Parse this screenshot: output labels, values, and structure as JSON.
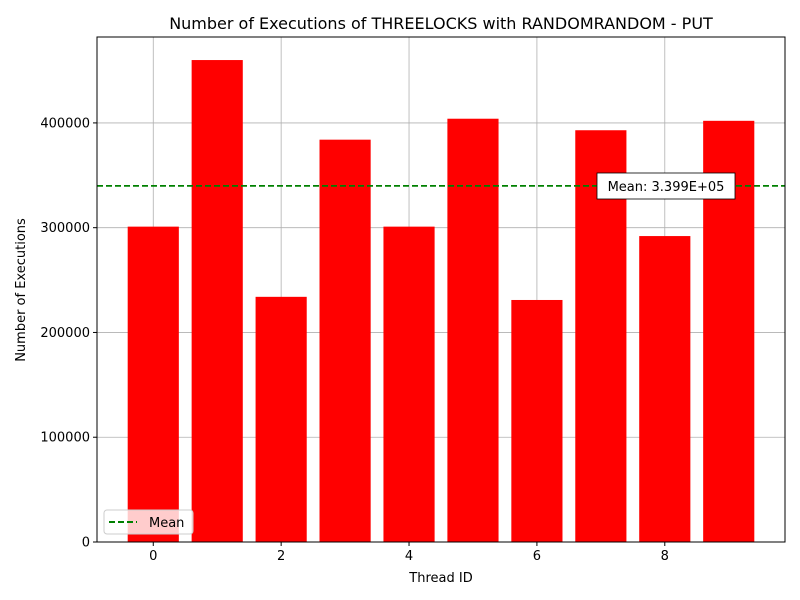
{
  "chart_data": {
    "type": "bar",
    "title": "Number of Executions of THREELOCKS with RANDOMRANDOM - PUT",
    "xlabel": "Thread ID",
    "ylabel": "Number of Executions",
    "x": [
      0,
      1,
      2,
      3,
      4,
      5,
      6,
      7,
      8,
      9
    ],
    "values": [
      301000,
      460000,
      234000,
      384000,
      301000,
      404000,
      231000,
      393000,
      292000,
      402000
    ],
    "xlim": [
      -0.88,
      9.88
    ],
    "ylim": [
      0,
      482000
    ],
    "xticks": [
      0,
      2,
      4,
      6,
      8
    ],
    "yticks": [
      0,
      100000,
      200000,
      300000,
      400000
    ],
    "bar_width": 0.8,
    "bar_color": "#ff0000",
    "grid": true,
    "mean": {
      "value": 339900,
      "label": "Mean: 3.399E+05",
      "color": "#008000",
      "style": "dashed"
    },
    "legend": {
      "placement": "lower-left",
      "entries": [
        {
          "name": "Mean",
          "color": "#008000",
          "style": "dashed"
        }
      ]
    }
  }
}
